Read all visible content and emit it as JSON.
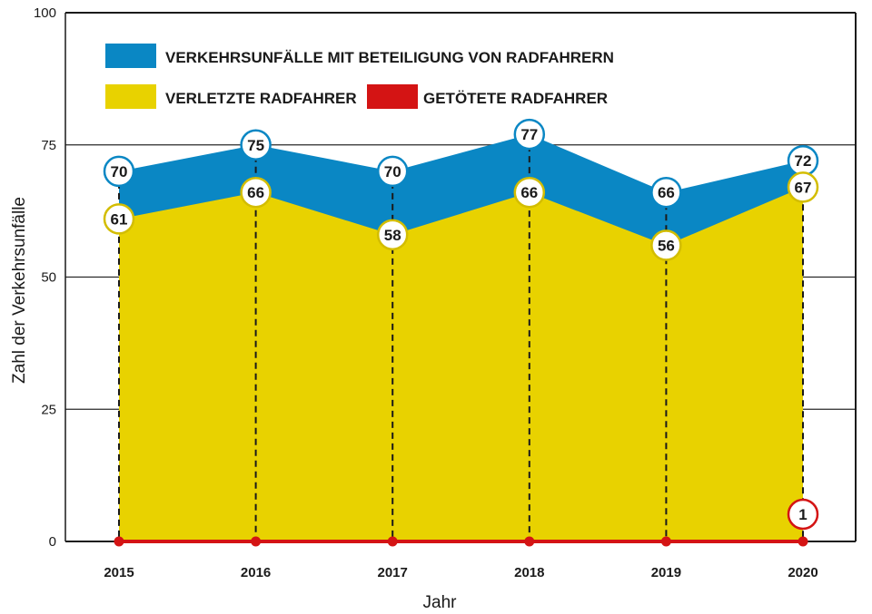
{
  "chart_data": {
    "type": "area",
    "title": "",
    "xlabel": "Jahr",
    "ylabel": "Zahl der Verkehrsunfälle",
    "ylim": [
      0,
      100
    ],
    "yticks": [
      0,
      25,
      50,
      75,
      100
    ],
    "grid": true,
    "legend_position": "top-left",
    "categories": [
      "2015",
      "2016",
      "2017",
      "2018",
      "2019",
      "2020"
    ],
    "series": [
      {
        "name": "VERKEHRSUNFÄLLE MIT BETEILIGUNG VON RADFAHRERN",
        "color": "#0a87c4",
        "values": [
          70,
          75,
          70,
          77,
          66,
          72
        ]
      },
      {
        "name": "VERLETZTE RADFAHRER",
        "color": "#e8d200",
        "values": [
          61,
          66,
          58,
          66,
          56,
          67
        ]
      },
      {
        "name": "GETÖTETE RADFAHRER",
        "color": "#d41414",
        "values": [
          0,
          0,
          0,
          0,
          0,
          1
        ]
      }
    ]
  }
}
